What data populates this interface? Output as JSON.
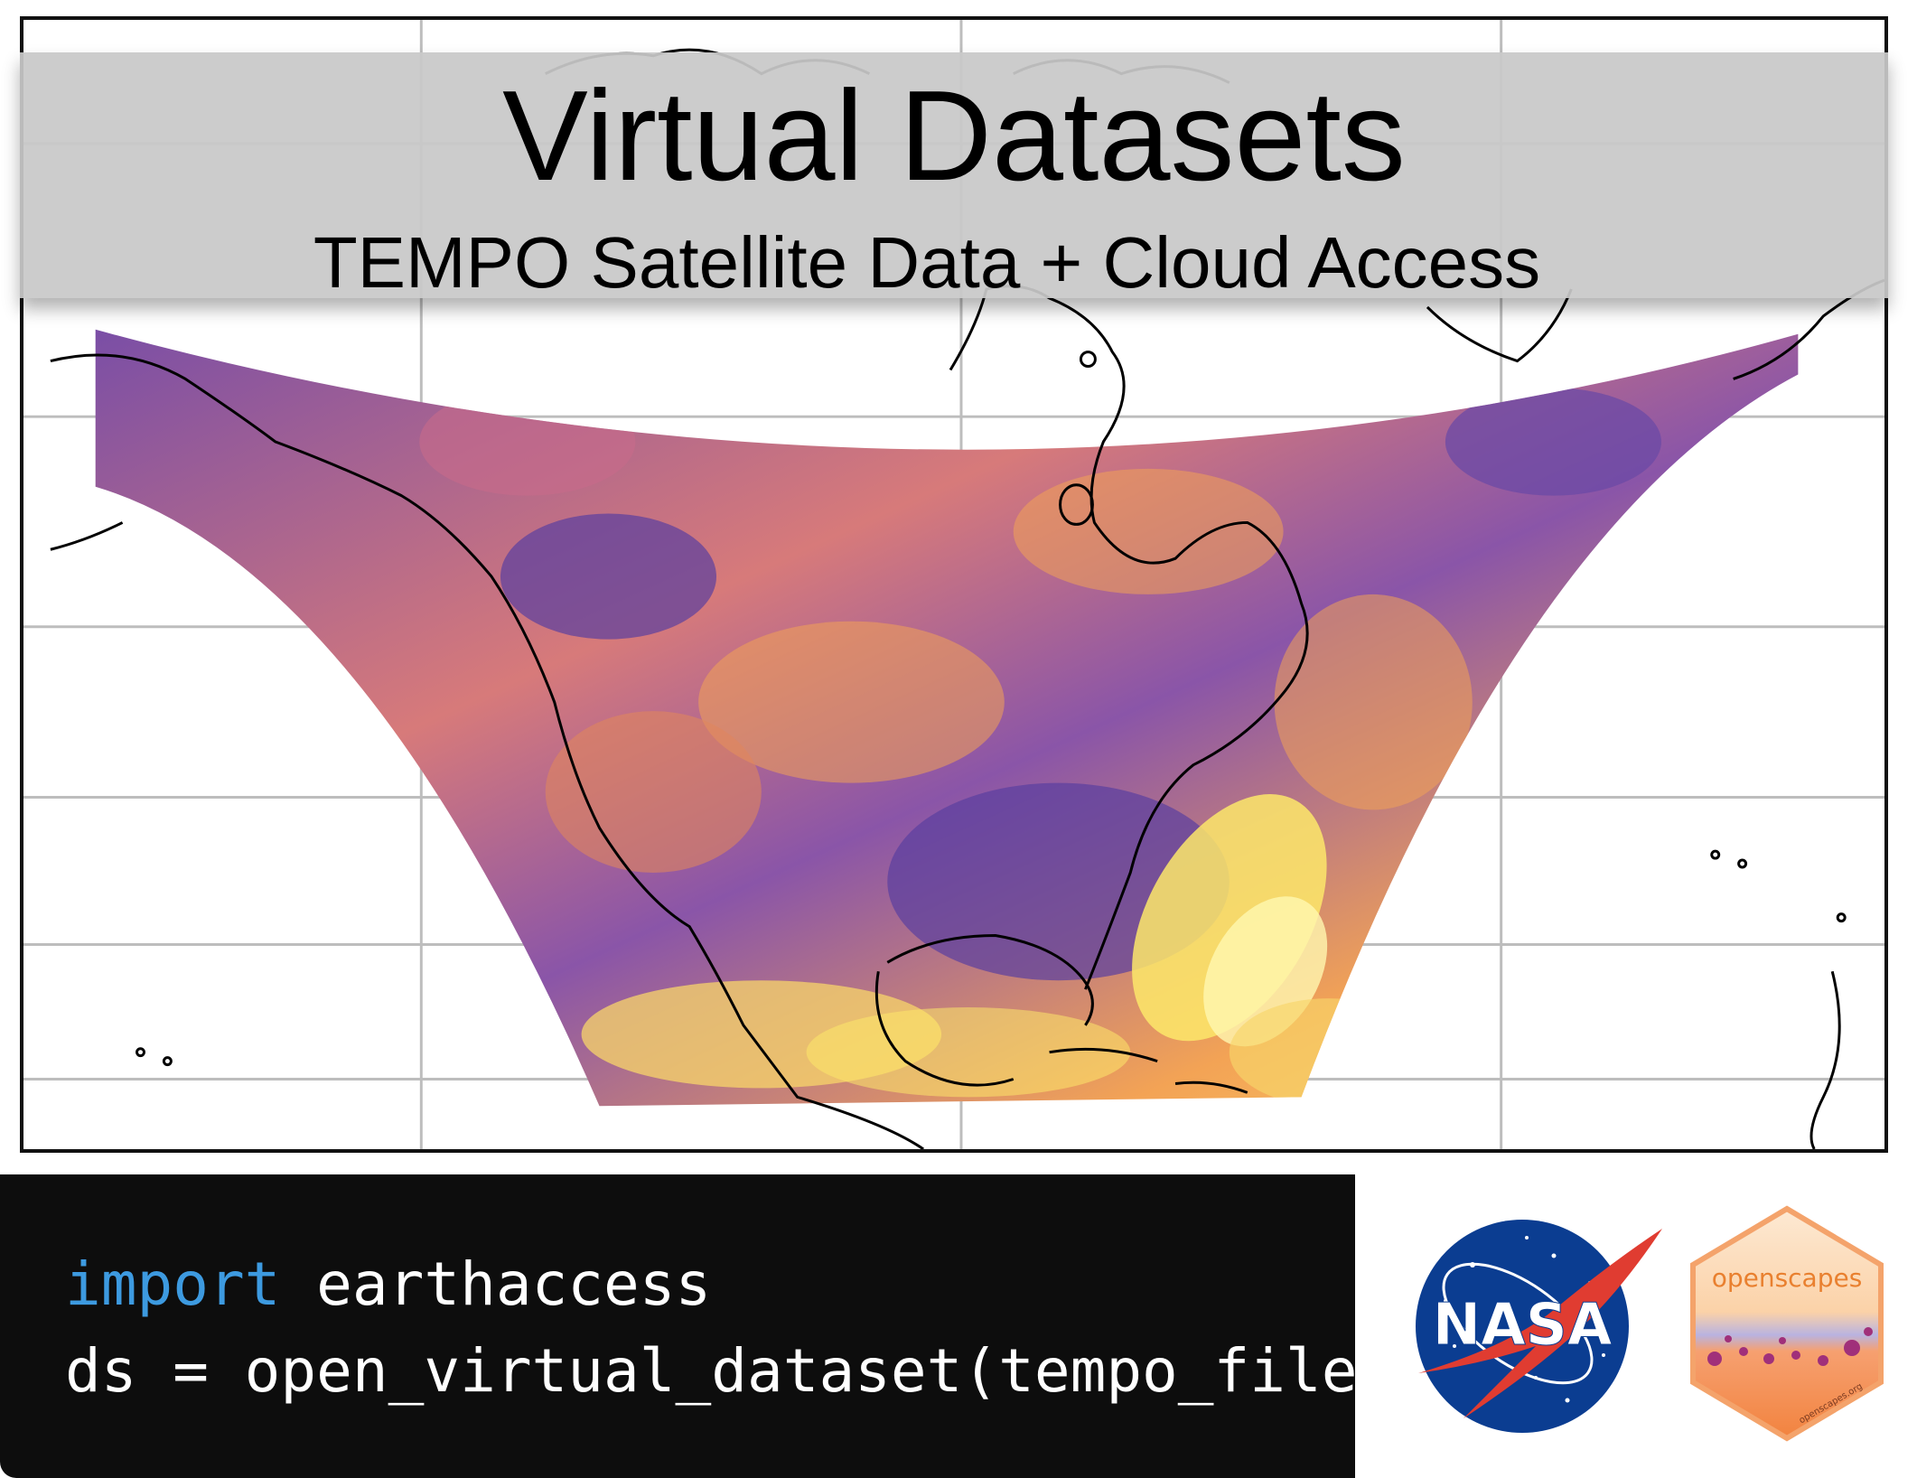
{
  "title": {
    "main": "Virtual Datasets",
    "subtitle": "TEMPO Satellite Data + Cloud Access"
  },
  "map": {
    "projection": "curved swath over North America",
    "colormap": [
      "#5a3fa0",
      "#8a4d9e",
      "#c86a8a",
      "#ee8a5a",
      "#f7b84d",
      "#fde76a"
    ],
    "grid": true
  },
  "code": {
    "line1": {
      "keyword": "import",
      "rest": " earthaccess"
    },
    "line2": "ds = open_virtual_dataset(tempo_files)"
  },
  "logos": {
    "nasa": {
      "text": "NASA",
      "icon": "nasa-meatball-icon"
    },
    "openscapes": {
      "text": "openscapes",
      "small_text": "openscapes.org",
      "icon": "openscapes-hex-icon"
    }
  },
  "colors": {
    "banner": "#c8c8c8",
    "code_bg": "#0d0d0d",
    "keyword": "#3d9ae0",
    "nasa_blue": "#0b3d91",
    "nasa_red": "#e03c31",
    "openscapes_orange": "#f4a36b"
  }
}
